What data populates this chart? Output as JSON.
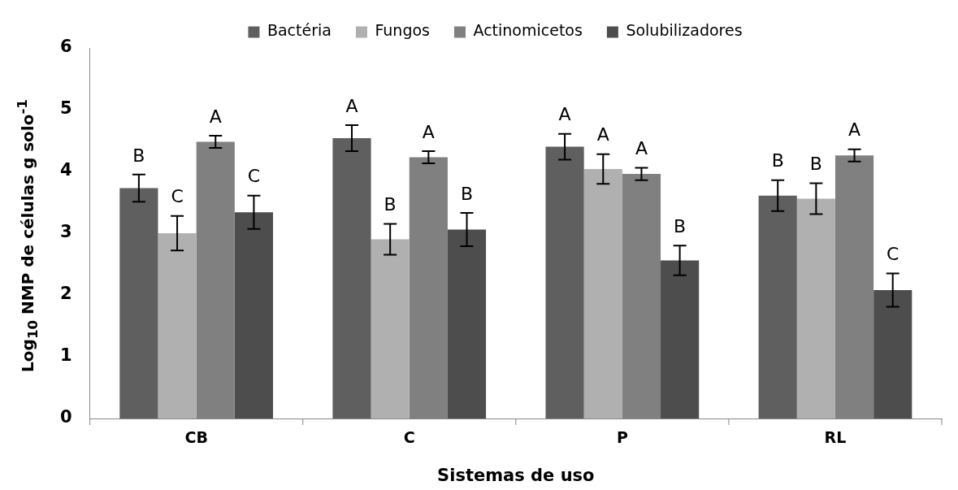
{
  "chart_data": {
    "type": "bar",
    "xlabel": "Sistemas de uso",
    "ylabel": "Log$_{10}$ NMP de células  g solo$^{-1}$",
    "categories": [
      "CB",
      "C",
      "P",
      "RL"
    ],
    "series": [
      {
        "name": "Bactéria",
        "color": "#5f5f5f",
        "values": [
          3.73,
          4.54,
          4.4,
          3.61
        ],
        "errors": [
          0.22,
          0.21,
          0.21,
          0.25
        ]
      },
      {
        "name": "Fungos",
        "color": "#b0b0b0",
        "values": [
          3.0,
          2.9,
          4.04,
          3.56
        ],
        "errors": [
          0.28,
          0.25,
          0.24,
          0.25
        ]
      },
      {
        "name": "Actinomicetos",
        "color": "#808080",
        "values": [
          4.48,
          4.23,
          3.96,
          4.26
        ],
        "errors": [
          0.1,
          0.1,
          0.1,
          0.1
        ]
      },
      {
        "name": "Solubilizadores",
        "color": "#4d4d4d",
        "values": [
          3.34,
          3.06,
          2.56,
          2.08
        ],
        "errors": [
          0.27,
          0.27,
          0.24,
          0.27
        ]
      }
    ],
    "ylim": [
      0,
      6
    ],
    "yticks": [
      0,
      1,
      2,
      3,
      4,
      5,
      6
    ],
    "grid": false,
    "legend": "top",
    "annotations": [
      "B",
      "C",
      "A",
      "C",
      "A",
      "B",
      "A",
      "B",
      "A",
      "A",
      "A",
      "B",
      "B",
      "B",
      "A",
      "C"
    ]
  }
}
